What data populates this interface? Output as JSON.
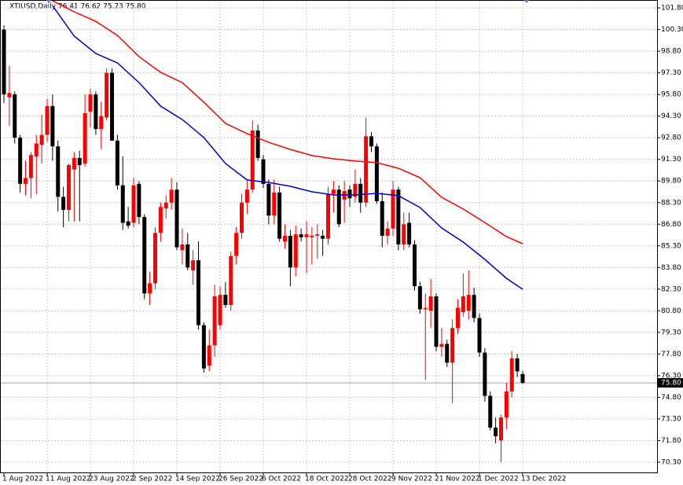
{
  "chart_data": {
    "type": "candlestick",
    "title": "XTIUSD,Daily  76.41 76.62 75.73 75.80",
    "categories": [
      "1 Aug 2022",
      null,
      null,
      null,
      null,
      null,
      null,
      null,
      "11 Aug 2022",
      null,
      null,
      null,
      null,
      null,
      null,
      null,
      "23 Aug 2022",
      null,
      null,
      null,
      null,
      null,
      null,
      null,
      "2 Sep 2022",
      null,
      null,
      null,
      null,
      null,
      null,
      null,
      "14 Sep 2022",
      null,
      null,
      null,
      null,
      null,
      null,
      null,
      "26 Sep 2022",
      null,
      null,
      null,
      null,
      null,
      null,
      null,
      "6 Oct 2022",
      null,
      null,
      null,
      null,
      null,
      null,
      null,
      "18 Oct 2022",
      null,
      null,
      null,
      null,
      null,
      null,
      null,
      "28 Oct 2022",
      null,
      null,
      null,
      null,
      null,
      null,
      null,
      "9 Nov 2022",
      null,
      null,
      null,
      null,
      null,
      null,
      null,
      "21 Nov 2022",
      null,
      null,
      null,
      null,
      null,
      null,
      null,
      "1 Dec 2022",
      null,
      null,
      null,
      null,
      null,
      null,
      null,
      "13 Dec 2022"
    ],
    "ohlc": [
      [
        100.3,
        100.6,
        95.2,
        95.8
      ],
      [
        95.6,
        97.8,
        93.6,
        95.9
      ],
      [
        95.8,
        96.0,
        92.4,
        92.8
      ],
      [
        92.8,
        93.0,
        89.0,
        89.6
      ],
      [
        89.6,
        91.2,
        88.8,
        90.0
      ],
      [
        90.0,
        91.8,
        88.6,
        91.6
      ],
      [
        91.5,
        93.0,
        88.9,
        92.4
      ],
      [
        92.3,
        94.4,
        91.0,
        93.0
      ],
      [
        93.0,
        95.5,
        92.5,
        95.0
      ],
      [
        95.0,
        95.8,
        91.2,
        92.2
      ],
      [
        92.2,
        92.6,
        87.7,
        88.7
      ],
      [
        88.7,
        89.4,
        86.6,
        87.8
      ],
      [
        87.8,
        91.0,
        87.0,
        90.9
      ],
      [
        90.6,
        91.8,
        87.0,
        91.4
      ],
      [
        91.4,
        91.9,
        87.0,
        90.9
      ],
      [
        91.0,
        95.8,
        90.8,
        94.5
      ],
      [
        94.6,
        96.2,
        93.5,
        95.8
      ],
      [
        95.8,
        96.0,
        93.0,
        93.4
      ],
      [
        93.4,
        95.3,
        92.0,
        94.3
      ],
      [
        94.2,
        97.6,
        94.0,
        97.3
      ],
      [
        97.3,
        97.6,
        92.6,
        92.6
      ],
      [
        92.6,
        93.0,
        89.2,
        89.5
      ],
      [
        89.5,
        91.5,
        86.4,
        86.9
      ],
      [
        87.0,
        88.0,
        86.5,
        86.7
      ],
      [
        86.9,
        90.0,
        86.6,
        89.5
      ],
      [
        89.6,
        89.8,
        86.8,
        87.3
      ],
      [
        87.3,
        87.5,
        81.6,
        82.0
      ],
      [
        82.0,
        83.5,
        81.2,
        82.7
      ],
      [
        82.7,
        86.6,
        82.3,
        86.2
      ],
      [
        86.2,
        88.3,
        85.6,
        88.0
      ],
      [
        87.9,
        88.8,
        87.2,
        88.3
      ],
      [
        88.3,
        90.0,
        87.8,
        89.2
      ],
      [
        89.2,
        89.7,
        85.0,
        85.2
      ],
      [
        85.0,
        86.5,
        84.0,
        85.4
      ],
      [
        85.4,
        86.2,
        83.6,
        83.8
      ],
      [
        83.6,
        85.0,
        82.6,
        84.3
      ],
      [
        84.3,
        85.6,
        79.5,
        79.8
      ],
      [
        79.8,
        80.0,
        76.5,
        76.8
      ],
      [
        77.0,
        79.5,
        76.6,
        78.4
      ],
      [
        78.4,
        82.6,
        77.6,
        81.8
      ],
      [
        79.8,
        82.5,
        79.5,
        81.9
      ],
      [
        81.9,
        82.8,
        81.0,
        81.2
      ],
      [
        81.2,
        84.9,
        80.8,
        84.6
      ],
      [
        84.6,
        86.6,
        84.0,
        86.2
      ],
      [
        86.2,
        88.9,
        85.8,
        88.3
      ],
      [
        88.3,
        89.8,
        87.5,
        89.2
      ],
      [
        89.2,
        94.0,
        89.0,
        93.3
      ],
      [
        93.3,
        93.7,
        91.2,
        91.4
      ],
      [
        91.3,
        91.6,
        89.3,
        89.6
      ],
      [
        89.6,
        89.9,
        86.8,
        87.4
      ],
      [
        87.4,
        89.9,
        86.8,
        89.0
      ],
      [
        89.0,
        89.4,
        85.6,
        85.8
      ],
      [
        85.6,
        86.8,
        85.1,
        86.0
      ],
      [
        86.0,
        86.4,
        82.5,
        83.8
      ],
      [
        83.8,
        86.7,
        83.2,
        86.1
      ],
      [
        86.1,
        86.5,
        85.6,
        85.9
      ],
      [
        85.9,
        87.0,
        83.4,
        86.1
      ],
      [
        85.9,
        86.6,
        84.0,
        86.0
      ],
      [
        86.0,
        86.8,
        84.4,
        86.1
      ],
      [
        86.0,
        86.4,
        84.6,
        85.8
      ],
      [
        85.8,
        89.4,
        85.4,
        88.9
      ],
      [
        88.9,
        89.8,
        87.6,
        89.2
      ],
      [
        89.2,
        89.5,
        86.6,
        86.8
      ],
      [
        88.5,
        89.8,
        86.9,
        89.1
      ],
      [
        89.2,
        89.5,
        88.0,
        88.6
      ],
      [
        88.7,
        90.6,
        88.3,
        89.6
      ],
      [
        89.6,
        90.0,
        87.6,
        88.3
      ],
      [
        88.3,
        94.2,
        88.0,
        92.9
      ],
      [
        92.9,
        93.2,
        91.8,
        92.2
      ],
      [
        92.2,
        92.4,
        88.2,
        88.4
      ],
      [
        88.4,
        89.0,
        85.2,
        86.0
      ],
      [
        86.0,
        87.0,
        85.4,
        86.5
      ],
      [
        86.5,
        89.8,
        86.0,
        89.2
      ],
      [
        89.2,
        89.4,
        85.0,
        85.4
      ],
      [
        85.4,
        87.6,
        85.0,
        86.8
      ],
      [
        86.9,
        87.6,
        85.2,
        85.4
      ],
      [
        85.4,
        85.7,
        82.2,
        82.5
      ],
      [
        82.5,
        82.8,
        80.6,
        80.9
      ],
      [
        80.9,
        82.0,
        76.0,
        81.0
      ],
      [
        80.8,
        83.0,
        79.6,
        81.8
      ],
      [
        81.8,
        82.0,
        78.0,
        78.3
      ],
      [
        78.3,
        79.6,
        77.6,
        78.5
      ],
      [
        78.5,
        78.8,
        76.9,
        77.2
      ],
      [
        77.2,
        80.2,
        74.4,
        79.6
      ],
      [
        79.6,
        81.6,
        79.2,
        81.0
      ],
      [
        80.7,
        83.4,
        80.4,
        81.8
      ],
      [
        80.8,
        83.6,
        80.2,
        81.9
      ],
      [
        81.9,
        82.4,
        80.0,
        80.3
      ],
      [
        80.3,
        80.6,
        77.6,
        77.9
      ],
      [
        77.9,
        78.2,
        74.5,
        74.9
      ],
      [
        74.9,
        75.2,
        72.5,
        72.7
      ],
      [
        72.7,
        73.4,
        71.6,
        72.1
      ],
      [
        71.8,
        73.6,
        70.3,
        73.4
      ],
      [
        73.4,
        75.8,
        72.6,
        75.2
      ],
      [
        75.2,
        78.0,
        74.8,
        77.5
      ],
      [
        77.5,
        77.8,
        76.2,
        76.6
      ],
      [
        76.41,
        76.62,
        75.73,
        75.8
      ]
    ],
    "up_color": "#ff0000",
    "down_color": "#000000",
    "lines": [
      {
        "color": "#ff0000",
        "x": [
          9,
          13,
          17,
          21,
          25,
          29,
          33,
          37,
          41,
          45,
          49,
          53,
          57,
          61,
          65,
          69,
          73,
          77,
          81,
          85,
          89,
          93,
          96
        ],
        "values": [
          102.29,
          101.53,
          100.87,
          99.89,
          98.42,
          97.33,
          96.62,
          95.26,
          93.79,
          93.08,
          92.48,
          91.99,
          91.56,
          91.34,
          91.18,
          91.07,
          90.68,
          90.03,
          88.67,
          87.85,
          86.92,
          85.94,
          85.45
        ]
      },
      {
        "color": "#0000cc",
        "x": [
          9,
          13,
          17,
          21,
          25,
          29,
          33,
          37,
          41,
          45,
          49,
          53,
          57,
          61,
          65,
          69,
          73,
          77,
          81,
          85,
          89,
          93,
          96
        ],
        "values": [
          101.96,
          99.84,
          98.64,
          97.99,
          96.62,
          94.99,
          94.06,
          92.81,
          91.01,
          89.87,
          89.7,
          89.43,
          89.05,
          88.83,
          88.83,
          88.94,
          88.78,
          87.96,
          86.54,
          85.56,
          84.36,
          83.05,
          82.29
        ]
      }
    ],
    "last_price": {
      "value": 75.8,
      "label": "75.80"
    },
    "ylim": [
      69.59,
      102.35
    ],
    "yticks": [
      {
        "value": 101.8,
        "label": "101.80"
      },
      {
        "value": 100.3,
        "label": "100.30"
      },
      {
        "value": 98.8,
        "label": "98.80"
      },
      {
        "value": 97.3,
        "label": "97.30"
      },
      {
        "value": 95.8,
        "label": "95.80"
      },
      {
        "value": 94.3,
        "label": "94.30"
      },
      {
        "value": 92.8,
        "label": "92.80"
      },
      {
        "value": 91.3,
        "label": "91.30"
      },
      {
        "value": 89.8,
        "label": "89.80"
      },
      {
        "value": 88.3,
        "label": "88.30"
      },
      {
        "value": 86.8,
        "label": "86.80"
      },
      {
        "value": 85.3,
        "label": "85.30"
      },
      {
        "value": 83.8,
        "label": "83.80"
      },
      {
        "value": 82.3,
        "label": "82.30"
      },
      {
        "value": 80.8,
        "label": "80.80"
      },
      {
        "value": 79.3,
        "label": "79.30"
      },
      {
        "value": 77.8,
        "label": "77.80"
      },
      {
        "value": 76.3,
        "label": "76.30"
      },
      {
        "value": 74.8,
        "label": "74.80"
      },
      {
        "value": 73.3,
        "label": "73.30"
      },
      {
        "value": 71.8,
        "label": "71.80"
      },
      {
        "value": 70.3,
        "label": "70.30"
      }
    ],
    "grid": true
  }
}
